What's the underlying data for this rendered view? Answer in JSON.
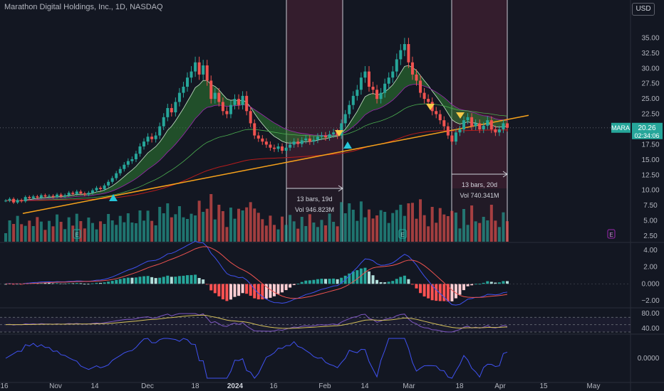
{
  "header": {
    "title": "Marathon Digital Holdings, Inc., 1D, NASDAQ",
    "currency": "USD"
  },
  "colors": {
    "bg": "#131722",
    "up": "#26a69a",
    "down": "#ef5350",
    "trend": "#f7a21b",
    "range_fill": "#3b1f2f",
    "ema_green": "#2e7d32",
    "macd": "#3f51f0",
    "signal": "#ef5350",
    "rsi": "#7e57c2",
    "rsi_ma": "#d4c05a",
    "osc": "#3f51f0",
    "axis_text": "#b2b5be"
  },
  "chart_data": [
    {
      "type": "candlestick",
      "title": "Marathon Digital Holdings, Inc., 1D, NASDAQ",
      "symbol": "MARA",
      "last_price": "20.26",
      "countdown": "02:34:06",
      "y_ticks": [
        "35.00",
        "32.50",
        "30.00",
        "27.50",
        "25.00",
        "22.50",
        "20.00",
        "17.50",
        "15.00",
        "12.50",
        "10.00",
        "7.50",
        "5.00",
        "2.50"
      ],
      "ylim": [
        2.5,
        37.5
      ],
      "x_ticks": [
        "16",
        "Nov",
        "14",
        "Dec",
        "18",
        "2024",
        "16",
        "Feb",
        "14",
        "Mar",
        "18",
        "Apr",
        "15",
        "May"
      ],
      "closes": [
        8.3,
        8.6,
        8.0,
        8.4,
        8.2,
        8.9,
        8.7,
        9.0,
        8.8,
        9.2,
        9.0,
        9.1,
        8.9,
        9.3,
        9.0,
        9.2,
        9.6,
        9.4,
        9.8,
        9.5,
        9.3,
        9.6,
        10.0,
        10.4,
        10.2,
        10.8,
        11.4,
        12.0,
        12.8,
        13.5,
        14.2,
        14.8,
        15.1,
        16.0,
        17.2,
        18.0,
        18.8,
        18.4,
        19.0,
        20.5,
        22.0,
        23.5,
        22.8,
        24.5,
        26.0,
        27.0,
        28.5,
        29.5,
        31.0,
        29.0,
        30.5,
        28.0,
        25.0,
        26.0,
        24.5,
        23.0,
        22.5,
        24.0,
        25.0,
        24.0,
        25.5,
        23.0,
        21.0,
        19.0,
        18.5,
        18.0,
        17.5,
        17.0,
        16.8,
        17.2,
        16.5,
        17.0,
        17.5,
        18.0,
        17.6,
        18.2,
        18.5,
        18.0,
        18.3,
        18.8,
        19.0,
        18.7,
        19.2,
        19.5,
        19.0,
        21.0,
        22.5,
        24.0,
        25.5,
        26.5,
        28.5,
        29.5,
        27.0,
        26.5,
        25.0,
        26.0,
        27.5,
        28.5,
        29.5,
        31.5,
        33.0,
        34.0,
        31.0,
        29.0,
        28.0,
        26.0,
        25.0,
        24.5,
        23.0,
        22.5,
        21.5,
        20.5,
        19.0,
        18.0,
        19.5,
        20.0,
        21.5,
        22.0,
        20.5,
        21.0,
        20.0,
        20.6,
        21.5,
        20.0,
        19.5,
        20.0,
        21.0,
        20.26
      ],
      "volume_scale": "relative",
      "series": [
        {
          "name": "EMA ribbon",
          "style": "band"
        },
        {
          "name": "Trendline"
        }
      ],
      "annotations": [
        {
          "label_line1": "13 bars, 19d",
          "label_line2": "Vol 946.823M"
        },
        {
          "label_line1": "13 bars, 20d",
          "label_line2": "Vol 740.341M"
        }
      ]
    },
    {
      "type": "line",
      "name": "MACD",
      "y_ticks": [
        "4.00",
        "2.00",
        "0.000",
        "−2.00"
      ]
    },
    {
      "type": "line",
      "name": "RSI",
      "y_ticks": [
        "80.00",
        "40.00"
      ]
    },
    {
      "type": "line",
      "name": "Oscillator",
      "y_ticks": [
        "0.0000"
      ]
    }
  ],
  "badges": {
    "earnings": "E"
  }
}
